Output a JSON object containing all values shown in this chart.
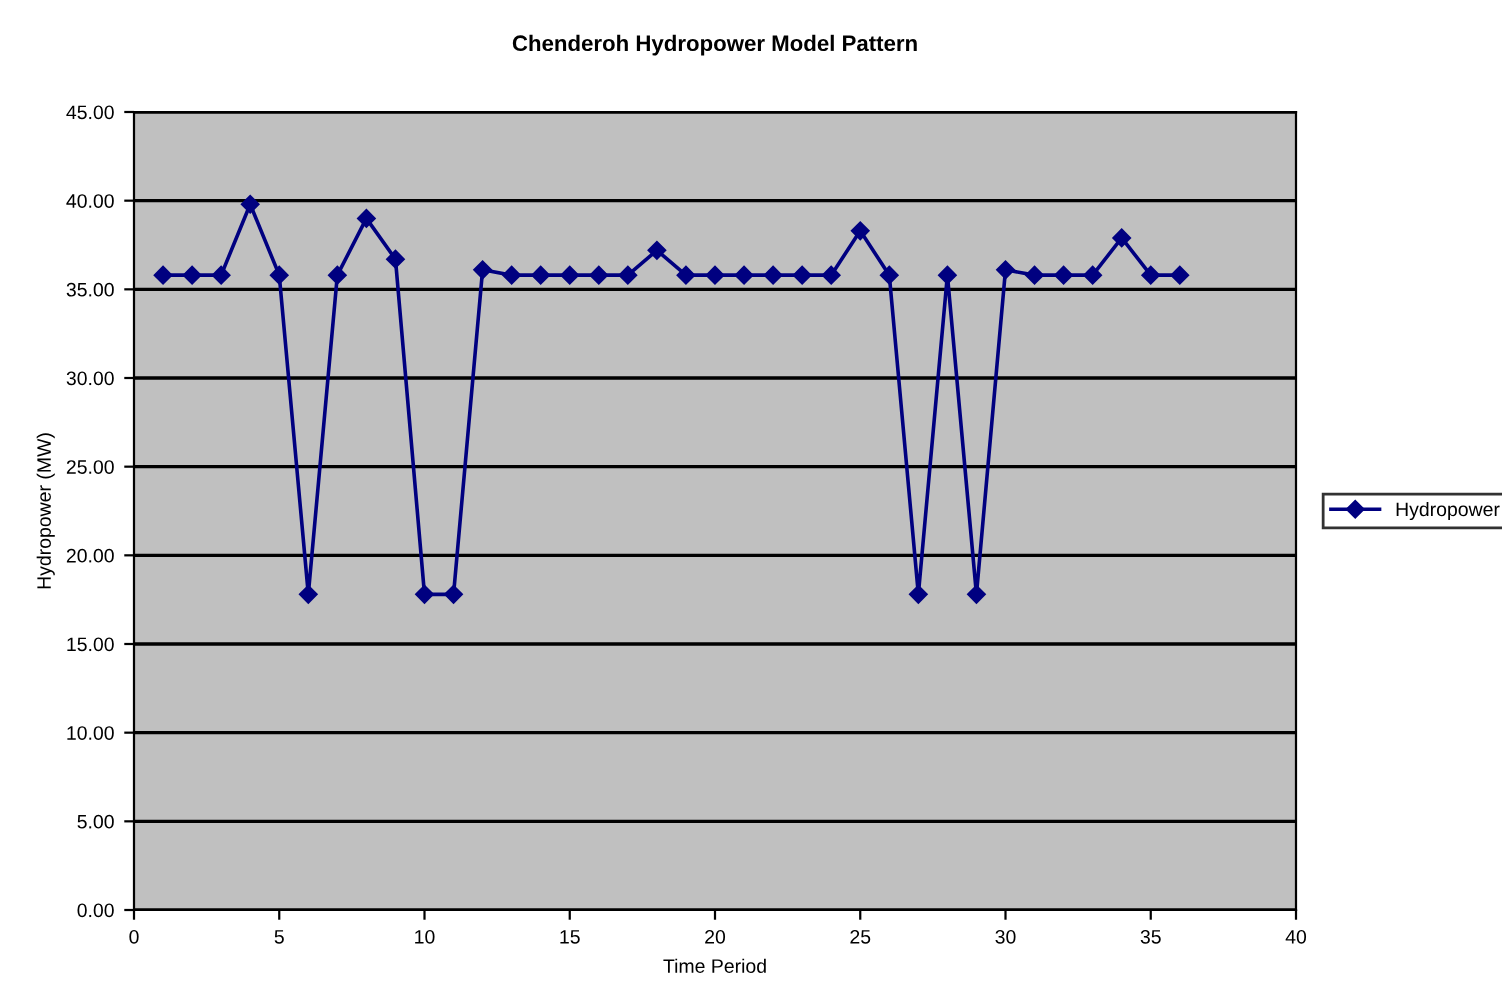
{
  "chart_data": {
    "type": "line",
    "title": "Chenderoh Hydropower Model Pattern",
    "xlabel": "Time Period",
    "ylabel": "Hydropower (MW)",
    "x": [
      1,
      2,
      3,
      4,
      5,
      6,
      7,
      8,
      9,
      10,
      11,
      12,
      13,
      14,
      15,
      16,
      17,
      18,
      19,
      20,
      21,
      22,
      23,
      24,
      25,
      26,
      27,
      28,
      29,
      30,
      31,
      32,
      33,
      34,
      35,
      36
    ],
    "series": [
      {
        "name": "Hydropower",
        "color": "#000080",
        "values": [
          35.8,
          35.8,
          35.8,
          39.8,
          35.8,
          17.8,
          35.8,
          39.0,
          36.7,
          17.8,
          17.8,
          36.1,
          35.8,
          35.8,
          35.8,
          35.8,
          35.8,
          37.2,
          35.8,
          35.8,
          35.8,
          35.8,
          35.8,
          35.8,
          38.3,
          35.8,
          17.8,
          35.8,
          17.8,
          36.1,
          35.8,
          35.8,
          35.8,
          37.9,
          35.8,
          35.8
        ]
      }
    ],
    "xlim": [
      0,
      40
    ],
    "xticks": [
      0,
      5,
      10,
      15,
      20,
      25,
      30,
      35,
      40
    ],
    "ylim": [
      0,
      45
    ],
    "yticks": [
      {
        "value": 0,
        "label": "0.00"
      },
      {
        "value": 5,
        "label": "5.00"
      },
      {
        "value": 10,
        "label": "10.00"
      },
      {
        "value": 15,
        "label": "15.00"
      },
      {
        "value": 20,
        "label": "20.00"
      },
      {
        "value": 25,
        "label": "25.00"
      },
      {
        "value": 30,
        "label": "30.00"
      },
      {
        "value": 35,
        "label": "35.00"
      },
      {
        "value": 40,
        "label": "40.00"
      },
      {
        "value": 45,
        "label": "45.00"
      }
    ],
    "grid": "y",
    "legend": "right",
    "marker": "diamond",
    "line_style": "solid"
  }
}
